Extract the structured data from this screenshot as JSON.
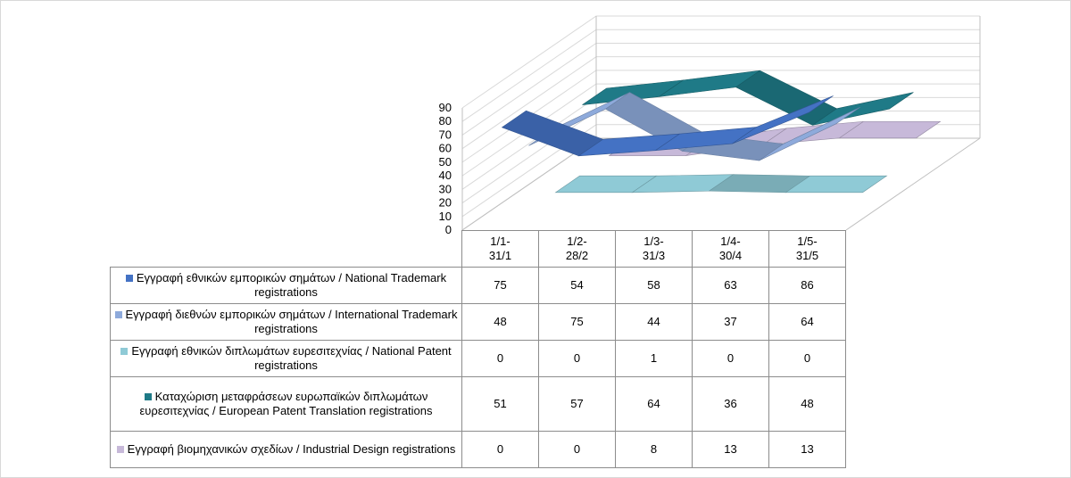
{
  "chart_data": {
    "type": "line",
    "style": "3d-line-with-data-table",
    "categories": [
      "1/1-\n31/1",
      "1/2-\n28/2",
      "1/3-\n31/3",
      "1/4-\n30/4",
      "1/5-\n31/5"
    ],
    "yticks": [
      "0",
      "10",
      "20",
      "30",
      "40",
      "50",
      "60",
      "70",
      "80",
      "90"
    ],
    "ylim": [
      0,
      90
    ],
    "grid": true,
    "series": [
      {
        "name": "Εγγραφή εθνικών εμπορικών σημάτων / National Trademark registrations",
        "color": "#4472c4",
        "values": [
          75,
          54,
          58,
          63,
          86
        ]
      },
      {
        "name": "Εγγραφή διεθνών εμπορικών σημάτων / International Trademark registrations",
        "color": "#8eaadb",
        "values": [
          48,
          75,
          44,
          37,
          64
        ]
      },
      {
        "name": "Εγγραφή εθνικών διπλωμάτων ευρεσιτεχνίας / National Patent registrations",
        "color": "#8fcad6",
        "values": [
          0,
          0,
          1,
          0,
          0
        ]
      },
      {
        "name": "Καταχώριση μεταφράσεων ευρωπαϊκών διπλωμάτων ευρεσιτεχνίας / European Patent Translation registrations",
        "color": "#1f7a87",
        "values": [
          51,
          57,
          64,
          36,
          48
        ]
      },
      {
        "name": "Εγγραφή βιομηχανικών σχεδίων / Industrial Design registrations",
        "color": "#c7b9d9",
        "values": [
          0,
          0,
          8,
          13,
          13
        ]
      }
    ]
  }
}
